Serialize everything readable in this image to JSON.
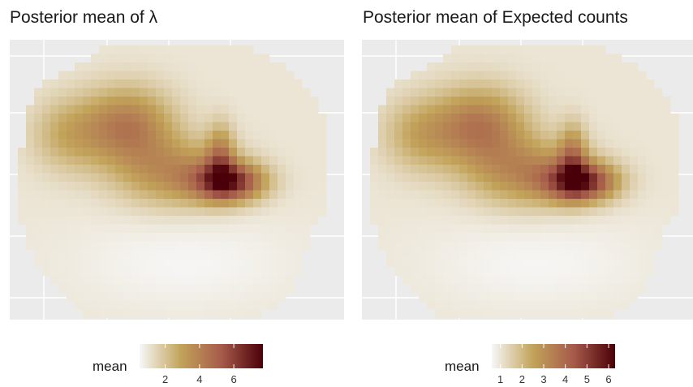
{
  "panels": [
    {
      "title": "Posterior mean of  λ",
      "legend_label": "mean"
    },
    {
      "title": "Posterior mean of Expected counts",
      "legend_label": "mean"
    }
  ],
  "colors": {
    "panel_background": "#ebebeb",
    "grid": "#ffffff",
    "scale": [
      "#f7f7f7",
      "#c2a35a",
      "#a65a4a",
      "#4a0008"
    ]
  },
  "chart_data": [
    {
      "type": "heatmap",
      "title": "Posterior mean of  λ",
      "fill_label": "mean",
      "grid_size": [
        40,
        32
      ],
      "scale": {
        "min": 0.5,
        "max": 7.7,
        "ticks": [
          2,
          4,
          6
        ]
      },
      "background": 1.0,
      "hotspots": [
        {
          "cx": 5.5,
          "cy": 10,
          "sx": 3.2,
          "sy": 3.0,
          "amp": 1.5
        },
        {
          "cx": 13,
          "cy": 9,
          "sx": 4.0,
          "sy": 3.2,
          "amp": 3.2
        },
        {
          "cx": 19,
          "cy": 14.5,
          "sx": 5.0,
          "sy": 2.8,
          "amp": 2.5
        },
        {
          "cx": 25.5,
          "cy": 15.5,
          "sx": 3.0,
          "sy": 1.6,
          "amp": 5.3
        },
        {
          "cx": 24.5,
          "cy": 12.5,
          "sx": 1.2,
          "sy": 2.6,
          "amp": 2.5
        },
        {
          "cx": 20,
          "cy": 25,
          "sx": 10,
          "sy": 4,
          "amp": -0.45
        }
      ]
    },
    {
      "type": "heatmap",
      "title": "Posterior mean of Expected counts",
      "fill_label": "mean",
      "grid_size": [
        40,
        32
      ],
      "scale": {
        "min": 0.6,
        "max": 6.3,
        "ticks": [
          1,
          2,
          3,
          4,
          5,
          6
        ]
      },
      "background": 1.0,
      "hotspots": [
        {
          "cx": 5.5,
          "cy": 10,
          "sx": 3.2,
          "sy": 3.0,
          "amp": 1.3
        },
        {
          "cx": 13,
          "cy": 9,
          "sx": 4.0,
          "sy": 3.2,
          "amp": 2.6
        },
        {
          "cx": 19,
          "cy": 14.5,
          "sx": 5.0,
          "sy": 2.8,
          "amp": 2.1
        },
        {
          "cx": 25.5,
          "cy": 15.5,
          "sx": 3.0,
          "sy": 1.6,
          "amp": 4.3
        },
        {
          "cx": 24.5,
          "cy": 12.5,
          "sx": 1.2,
          "sy": 2.6,
          "amp": 2.0
        },
        {
          "cx": 20,
          "cy": 25,
          "sx": 10,
          "sy": 4,
          "amp": -0.35
        }
      ]
    }
  ]
}
